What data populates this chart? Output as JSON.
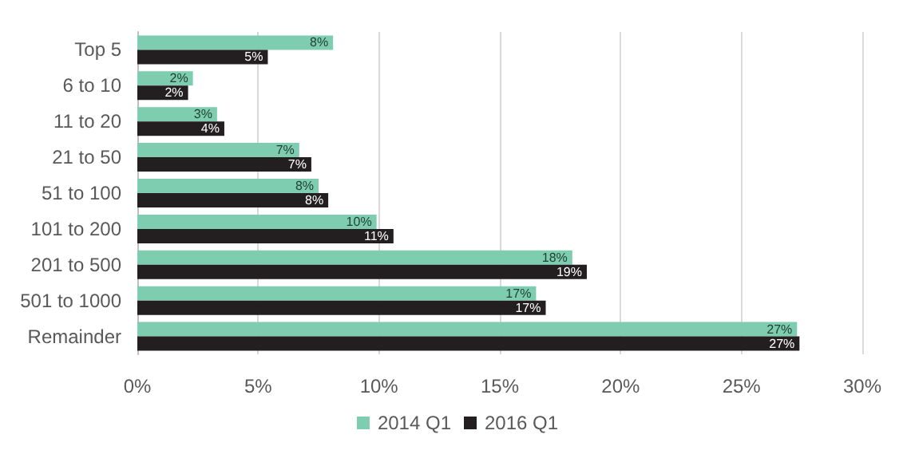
{
  "chart_data": {
    "type": "bar",
    "orientation": "horizontal",
    "categories": [
      "Top 5",
      "6 to 10",
      "11 to 20",
      "21 to 50",
      "51 to 100",
      "101 to 200",
      "201 to 500",
      "501 to 1000",
      "Remainder"
    ],
    "series": [
      {
        "name": "2014 Q1",
        "color": "#7fcdb1",
        "values": [
          8.1,
          2.3,
          3.3,
          6.7,
          7.5,
          9.9,
          18.0,
          16.5,
          27.3
        ],
        "value_labels": [
          "8%",
          "2%",
          "3%",
          "7%",
          "8%",
          "10%",
          "18%",
          "17%",
          "27%"
        ]
      },
      {
        "name": "2016 Q1",
        "color": "#231f20",
        "values": [
          5.4,
          2.1,
          3.6,
          7.2,
          7.9,
          10.6,
          18.6,
          16.9,
          27.4
        ],
        "value_labels": [
          "5%",
          "2%",
          "4%",
          "7%",
          "8%",
          "11%",
          "19%",
          "17%",
          "27%"
        ]
      }
    ],
    "xlim": [
      0,
      30
    ],
    "xticks": [
      {
        "value": 0,
        "label": "0%"
      },
      {
        "value": 5,
        "label": "5%"
      },
      {
        "value": 10,
        "label": "10%"
      },
      {
        "value": 15,
        "label": "15%"
      },
      {
        "value": 20,
        "label": "20%"
      },
      {
        "value": 25,
        "label": "25%"
      },
      {
        "value": 30,
        "label": "30%"
      }
    ],
    "grid": "x",
    "legend": "bottom"
  }
}
